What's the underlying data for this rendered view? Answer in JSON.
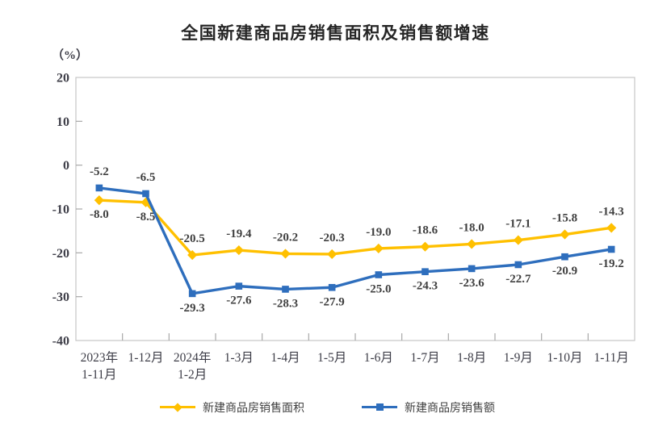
{
  "title": "全国新建商品房销售面积及销售额增速",
  "y_axis_unit": "（%）",
  "colors": {
    "sales_area_series": "#FFC000",
    "sales_value_series": "#2E6EBD",
    "label_text": "#404040",
    "axis_text": "#3D3D47",
    "title_text": "#262626",
    "plot_border": "#C6C6C6",
    "tick": "#A8A8A8"
  },
  "chart_data": {
    "type": "line",
    "title": "全国新建商品房销售面积及销售额增速",
    "y_unit": "（%）",
    "categories": [
      "2023年\n1-11月",
      "1-12月",
      "2024年\n1-2月",
      "1-3月",
      "1-4月",
      "1-5月",
      "1-6月",
      "1-7月",
      "1-8月",
      "1-9月",
      "1-10月",
      "1-11月"
    ],
    "series": [
      {
        "name": "新建商品房销售面积",
        "color": "#FFC000",
        "marker": "diamond",
        "values": [
          -8.0,
          -8.5,
          -20.5,
          -19.4,
          -20.2,
          -20.3,
          -19.0,
          -18.6,
          -18.0,
          -17.1,
          -15.8,
          -14.3
        ],
        "label_side": [
          "below",
          "below",
          "above",
          "above",
          "above",
          "above",
          "above",
          "above",
          "above",
          "above",
          "above",
          "above"
        ]
      },
      {
        "name": "新建商品房销售额",
        "color": "#2E6EBD",
        "marker": "square",
        "values": [
          -5.2,
          -6.5,
          -29.3,
          -27.6,
          -28.3,
          -27.9,
          -25.0,
          -24.3,
          -23.6,
          -22.7,
          -20.9,
          -19.2
        ],
        "label_side": [
          "above",
          "above",
          "below",
          "below",
          "below",
          "below",
          "below",
          "below",
          "below",
          "below",
          "below",
          "below"
        ]
      }
    ],
    "ylim": [
      -40,
      20
    ],
    "y_ticks": [
      20,
      10,
      0,
      -10,
      -20,
      -30,
      -40
    ],
    "grid": false,
    "legend_position": "bottom"
  }
}
